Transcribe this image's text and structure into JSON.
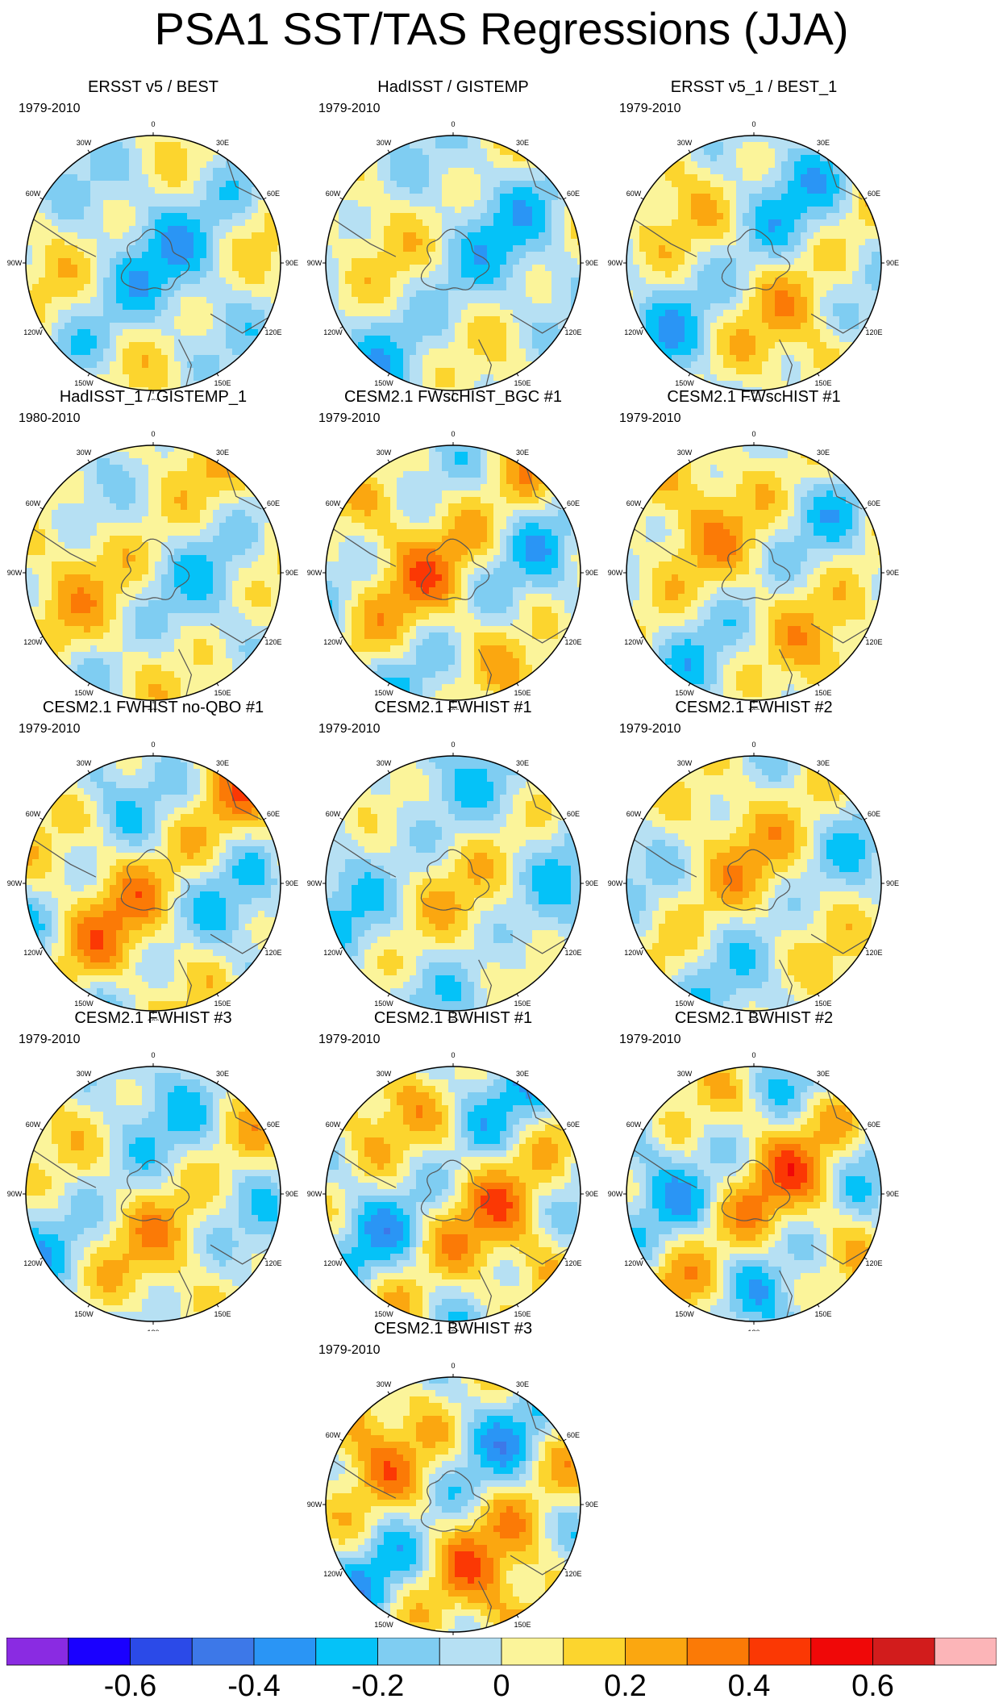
{
  "title": "PSA1 SST/TAS Regressions (JJA)",
  "chart_data": {
    "type": "heatmap",
    "projection": "south-polar-stereographic",
    "title": "PSA1 SST/TAS Regressions (JJA)",
    "longitude_labels": [
      "0",
      "30E",
      "60E",
      "90E",
      "120E",
      "150E",
      "180",
      "150W",
      "120W",
      "90W",
      "60W",
      "30W"
    ],
    "colorbar": {
      "levels": [
        -0.7,
        -0.6,
        -0.5,
        -0.4,
        -0.3,
        -0.2,
        -0.1,
        0,
        0.1,
        0.2,
        0.3,
        0.4,
        0.5,
        0.6,
        0.7
      ],
      "tick_labels": [
        "-0.6",
        "-0.4",
        "-0.2",
        "0",
        "0.2",
        "0.4",
        "0.6"
      ],
      "colors": [
        "#8a2be2",
        "#1a00ff",
        "#2b4ae8",
        "#3d78e8",
        "#2a95f5",
        "#05c2f8",
        "#7fcdf2",
        "#b6e0f3",
        "#fbf49a",
        "#fcd52e",
        "#fba710",
        "#fb7a06",
        "#fb3804",
        "#f00808",
        "#d21c1c",
        "#fcb5b8"
      ]
    },
    "panels": [
      {
        "title": "ERSST v5 / BEST",
        "period": "1979-2010",
        "seed": 11,
        "bias": -0.05,
        "amp": 0.18
      },
      {
        "title": "HadISST / GISTEMP",
        "period": "1979-2010",
        "seed": 23,
        "bias": -0.04,
        "amp": 0.17
      },
      {
        "title": "ERSST v5_1 / BEST_1",
        "period": "1979-2010",
        "seed": 37,
        "bias": 0.0,
        "amp": 0.2
      },
      {
        "title": "HadISST_1 / GISTEMP_1",
        "period": "1980-2010",
        "seed": 41,
        "bias": 0.02,
        "amp": 0.17
      },
      {
        "title": "CESM2.1 FWscHIST_BGC #1",
        "period": "1979-2010",
        "seed": 53,
        "bias": 0.05,
        "amp": 0.22
      },
      {
        "title": "CESM2.1 FWscHIST #1",
        "period": "1979-2010",
        "seed": 67,
        "bias": 0.05,
        "amp": 0.19
      },
      {
        "title": "CESM2.1 FWHIST no-QBO #1",
        "period": "1979-2010",
        "seed": 71,
        "bias": 0.04,
        "amp": 0.22
      },
      {
        "title": "CESM2.1 FWHIST #1",
        "period": "1979-2010",
        "seed": 83,
        "bias": -0.03,
        "amp": 0.17
      },
      {
        "title": "CESM2.1 FWHIST #2",
        "period": "1979-2010",
        "seed": 97,
        "bias": 0.03,
        "amp": 0.18
      },
      {
        "title": "CESM2.1 FWHIST #3",
        "period": "1979-2010",
        "seed": 101,
        "bias": 0.01,
        "amp": 0.19
      },
      {
        "title": "CESM2.1 BWHIST #1",
        "period": "1979-2010",
        "seed": 113,
        "bias": 0.04,
        "amp": 0.24
      },
      {
        "title": "CESM2.1 BWHIST #2",
        "period": "1979-2010",
        "seed": 127,
        "bias": 0.03,
        "amp": 0.25
      },
      {
        "title": "CESM2.1 BWHIST #3",
        "period": "1979-2010",
        "seed": 131,
        "bias": 0.06,
        "amp": 0.25
      }
    ]
  }
}
